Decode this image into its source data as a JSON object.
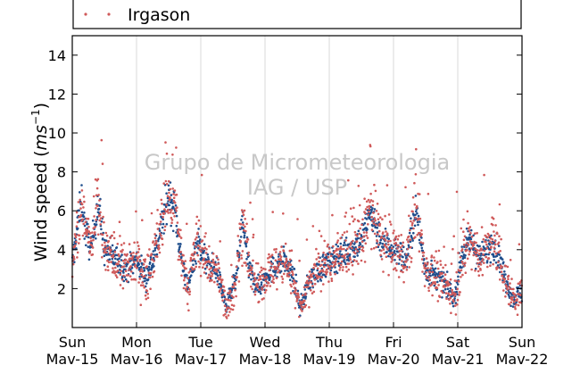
{
  "chart_data": {
    "type": "scatter",
    "ylabel_prefix": "Wind speed (",
    "ylabel_unit_base": "ms",
    "ylabel_unit_exp": "−1",
    "ylabel_suffix": ")",
    "ylim": [
      0,
      15
    ],
    "yticks": [
      2,
      4,
      6,
      8,
      10,
      12,
      14
    ],
    "xlim_days": [
      0,
      7
    ],
    "xticks": [
      {
        "day": "Sun",
        "date": "Mav-15"
      },
      {
        "day": "Mon",
        "date": "Mav-16"
      },
      {
        "day": "Tue",
        "date": "Mav-17"
      },
      {
        "day": "Wed",
        "date": "Mav-18"
      },
      {
        "day": "Thu",
        "date": "Mav-19"
      },
      {
        "day": "Fri",
        "date": "Mav-20"
      },
      {
        "day": "Sat",
        "date": "Mav-21"
      },
      {
        "day": "Sun",
        "date": "Mav-22"
      }
    ],
    "grid": "vertical",
    "legend_placement": "top",
    "watermark": [
      "Grupo de Micrometeorologia",
      "IAG / USP"
    ],
    "series": [
      {
        "name": "",
        "color": "#1f4e8c",
        "marker": "dot"
      },
      {
        "name": "Irgason",
        "color": "#d05a5a",
        "marker": "dot"
      }
    ],
    "mean_profile": [
      {
        "x": 0.0,
        "y": 3.2
      },
      {
        "x": 0.08,
        "y": 5.2
      },
      {
        "x": 0.15,
        "y": 6.5
      },
      {
        "x": 0.2,
        "y": 5.0
      },
      {
        "x": 0.3,
        "y": 4.0
      },
      {
        "x": 0.4,
        "y": 6.5
      },
      {
        "x": 0.5,
        "y": 4.0
      },
      {
        "x": 0.7,
        "y": 3.5
      },
      {
        "x": 0.85,
        "y": 3.0
      },
      {
        "x": 1.0,
        "y": 3.5
      },
      {
        "x": 1.15,
        "y": 2.5
      },
      {
        "x": 1.3,
        "y": 4.0
      },
      {
        "x": 1.5,
        "y": 6.8
      },
      {
        "x": 1.6,
        "y": 6.0
      },
      {
        "x": 1.7,
        "y": 3.5
      },
      {
        "x": 1.8,
        "y": 2.0
      },
      {
        "x": 1.95,
        "y": 4.5
      },
      {
        "x": 2.1,
        "y": 3.2
      },
      {
        "x": 2.25,
        "y": 3.0
      },
      {
        "x": 2.4,
        "y": 1.0
      },
      {
        "x": 2.55,
        "y": 2.5
      },
      {
        "x": 2.65,
        "y": 5.5
      },
      {
        "x": 2.75,
        "y": 3.0
      },
      {
        "x": 2.9,
        "y": 2.0
      },
      {
        "x": 3.05,
        "y": 2.8
      },
      {
        "x": 3.3,
        "y": 3.5
      },
      {
        "x": 3.45,
        "y": 2.5
      },
      {
        "x": 3.55,
        "y": 1.0
      },
      {
        "x": 3.7,
        "y": 2.5
      },
      {
        "x": 3.85,
        "y": 3.0
      },
      {
        "x": 4.05,
        "y": 3.5
      },
      {
        "x": 4.3,
        "y": 4.0
      },
      {
        "x": 4.5,
        "y": 4.5
      },
      {
        "x": 4.65,
        "y": 6.0
      },
      {
        "x": 4.8,
        "y": 4.5
      },
      {
        "x": 5.0,
        "y": 4.0
      },
      {
        "x": 5.2,
        "y": 3.5
      },
      {
        "x": 5.35,
        "y": 6.0
      },
      {
        "x": 5.5,
        "y": 3.0
      },
      {
        "x": 5.7,
        "y": 2.5
      },
      {
        "x": 5.85,
        "y": 2.0
      },
      {
        "x": 5.95,
        "y": 1.5
      },
      {
        "x": 6.05,
        "y": 3.5
      },
      {
        "x": 6.2,
        "y": 4.5
      },
      {
        "x": 6.35,
        "y": 3.5
      },
      {
        "x": 6.55,
        "y": 4.5
      },
      {
        "x": 6.7,
        "y": 3.0
      },
      {
        "x": 6.85,
        "y": 1.5
      },
      {
        "x": 7.0,
        "y": 1.8
      }
    ]
  }
}
